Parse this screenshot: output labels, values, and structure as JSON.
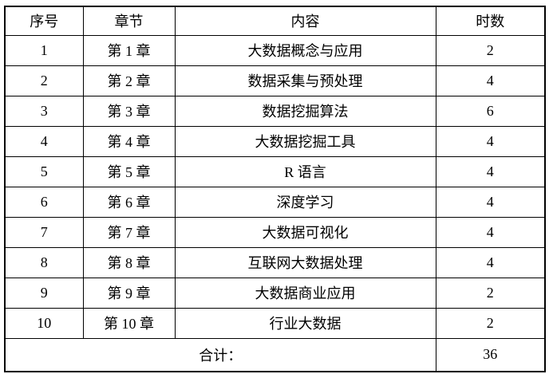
{
  "table": {
    "headers": {
      "num": "序号",
      "chapter": "章节",
      "content": "内容",
      "hours": "时数"
    },
    "rows": [
      {
        "num": "1",
        "chapter": "第 1 章",
        "content": "大数据概念与应用",
        "hours": "2"
      },
      {
        "num": "2",
        "chapter": "第 2 章",
        "content": "数据采集与预处理",
        "hours": "4"
      },
      {
        "num": "3",
        "chapter": "第 3 章",
        "content": "数据挖掘算法",
        "hours": "6"
      },
      {
        "num": "4",
        "chapter": "第 4 章",
        "content": "大数据挖掘工具",
        "hours": "4"
      },
      {
        "num": "5",
        "chapter": "第 5 章",
        "content": "R 语言",
        "hours": "4"
      },
      {
        "num": "6",
        "chapter": "第 6 章",
        "content": "深度学习",
        "hours": "4"
      },
      {
        "num": "7",
        "chapter": "第 7 章",
        "content": "大数据可视化",
        "hours": "4"
      },
      {
        "num": "8",
        "chapter": "第 8 章",
        "content": "互联网大数据处理",
        "hours": "4"
      },
      {
        "num": "9",
        "chapter": "第 9 章",
        "content": "大数据商业应用",
        "hours": "2"
      },
      {
        "num": "10",
        "chapter": "第 10 章",
        "content": "行业大数据",
        "hours": "2"
      }
    ],
    "footer": {
      "label": "合计：",
      "total": "36"
    },
    "colors": {
      "border": "#000000",
      "text": "#000000",
      "background": "#ffffff"
    }
  }
}
